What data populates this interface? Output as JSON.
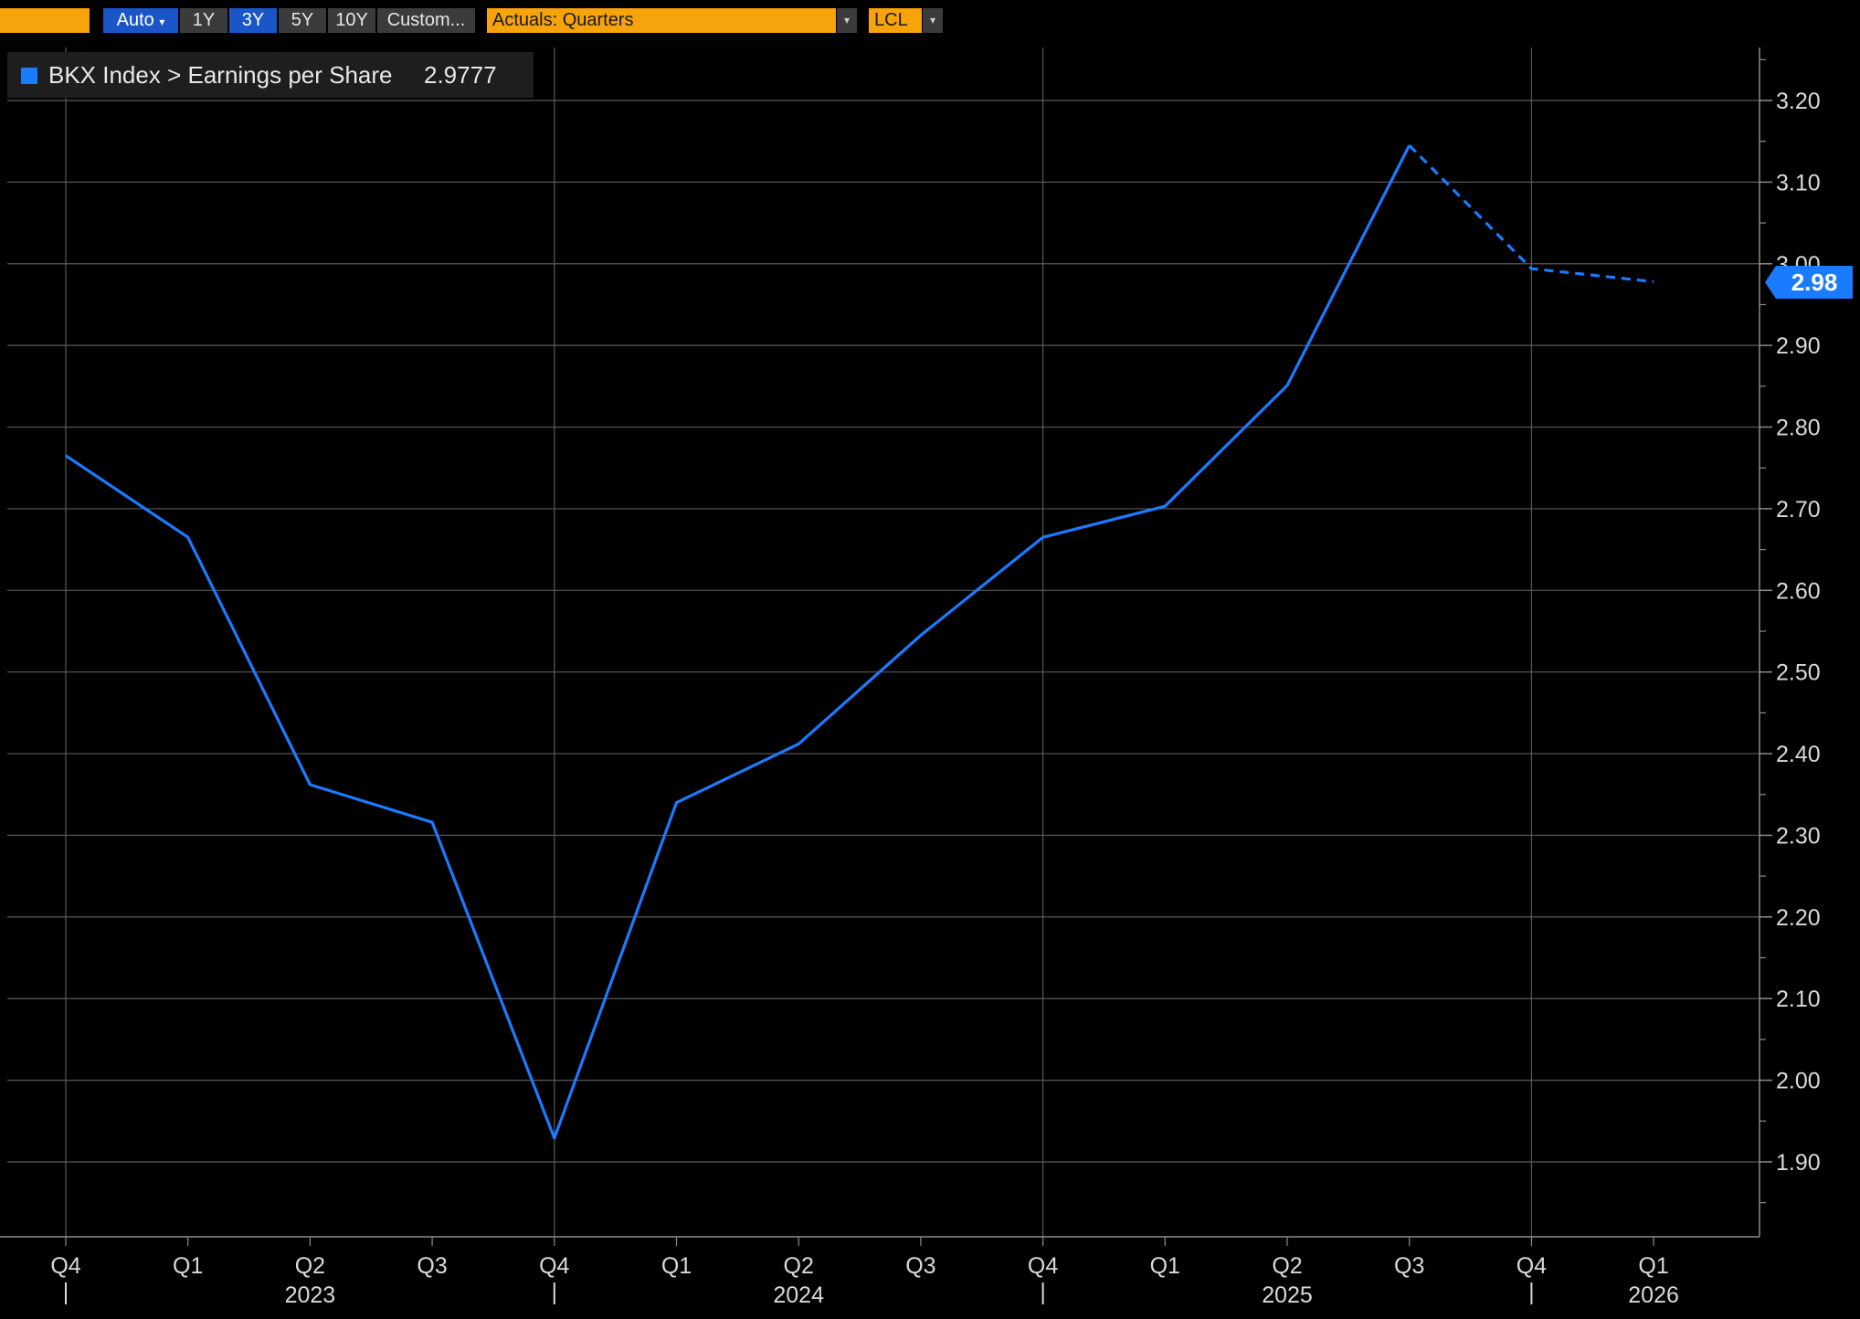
{
  "toolbar": {
    "auto_label": "Auto",
    "auto_arrow": "▾",
    "periods": [
      "1Y",
      "3Y",
      "5Y",
      "10Y"
    ],
    "active_period": "3Y",
    "custom_label": "Custom...",
    "view_select": "Actuals: Quarters",
    "currency_select": "LCL",
    "dropdown_arrow": "▾"
  },
  "legend": {
    "label": "BKX Index > Earnings per Share",
    "value": "2.9777"
  },
  "last_value_tag": "2.98",
  "colors": {
    "series": "#1a7bff",
    "grid": "#5a5a5a",
    "axis": "#8c8c8c",
    "text": "#d9d9d9",
    "toolbar_orange": "#f7a30b",
    "toolbar_blue": "#1b56c9"
  },
  "chart_data": {
    "type": "line",
    "title": "",
    "xlabel": "",
    "ylabel": "",
    "categories": [
      "Q4",
      "Q1",
      "Q2",
      "Q3",
      "Q4",
      "Q1",
      "Q2",
      "Q3",
      "Q4",
      "Q1",
      "Q2",
      "Q3",
      "Q4",
      "Q1"
    ],
    "year_labels": [
      {
        "label": "2023",
        "category_index": 2
      },
      {
        "label": "2024",
        "category_index": 6
      },
      {
        "label": "2025",
        "category_index": 10
      },
      {
        "label": "2026",
        "category_index": 13
      }
    ],
    "series": [
      {
        "name": "BKX Index > Earnings per Share",
        "style": "solid",
        "values": [
          2.765,
          2.665,
          2.362,
          2.316,
          1.929,
          2.34,
          2.412,
          2.545,
          2.665,
          2.703,
          2.851,
          3.145,
          null,
          null
        ]
      },
      {
        "name": "BKX Index > Earnings per Share",
        "style": "dashed",
        "values": [
          null,
          null,
          null,
          null,
          null,
          null,
          null,
          null,
          null,
          null,
          null,
          3.145,
          2.994,
          2.978
        ]
      }
    ],
    "y_ticks": [
      "3.20",
      "3.10",
      "3.00",
      "2.90",
      "2.80",
      "2.70",
      "2.60",
      "2.50",
      "2.40",
      "2.30",
      "2.20",
      "2.10",
      "2.00",
      "1.90"
    ],
    "ylim": [
      1.82,
      3.26
    ],
    "y_axis_side": "right",
    "grid": true,
    "legend_position": "top-left"
  }
}
